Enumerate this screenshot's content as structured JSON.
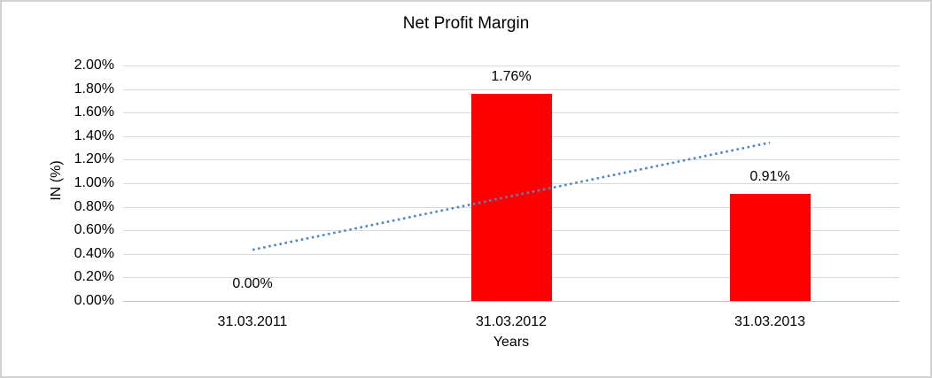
{
  "window": {
    "background_color": "#FFFFFF",
    "border_color": "#D2D2D2"
  },
  "chart_data": {
    "type": "bar",
    "title": "Net Profit Margin",
    "xlabel": "Years",
    "ylabel": "IN (%)",
    "categories": [
      "31.03.2011",
      "31.03.2012",
      "31.03.2013"
    ],
    "values": [
      0.0,
      1.76,
      0.91
    ],
    "data_labels": [
      "0.00%",
      "1.76%",
      "0.91%"
    ],
    "ylim": [
      0,
      2.0
    ],
    "ytick_step": 0.2,
    "ytick_labels": [
      "0.00%",
      "0.20%",
      "0.40%",
      "0.60%",
      "0.80%",
      "1.00%",
      "1.20%",
      "1.40%",
      "1.60%",
      "1.80%",
      "2.00%"
    ],
    "grid": true,
    "legend": "none",
    "bar_color": "#FF0000",
    "gridline_color": "#D9D9D9",
    "axis_line_color": "#BFBFBF",
    "text_color": "#000000",
    "trendline": {
      "type": "linear",
      "style": "dotted",
      "color": "#4E87C7",
      "start_value": 0.435,
      "end_value": 1.345
    }
  }
}
